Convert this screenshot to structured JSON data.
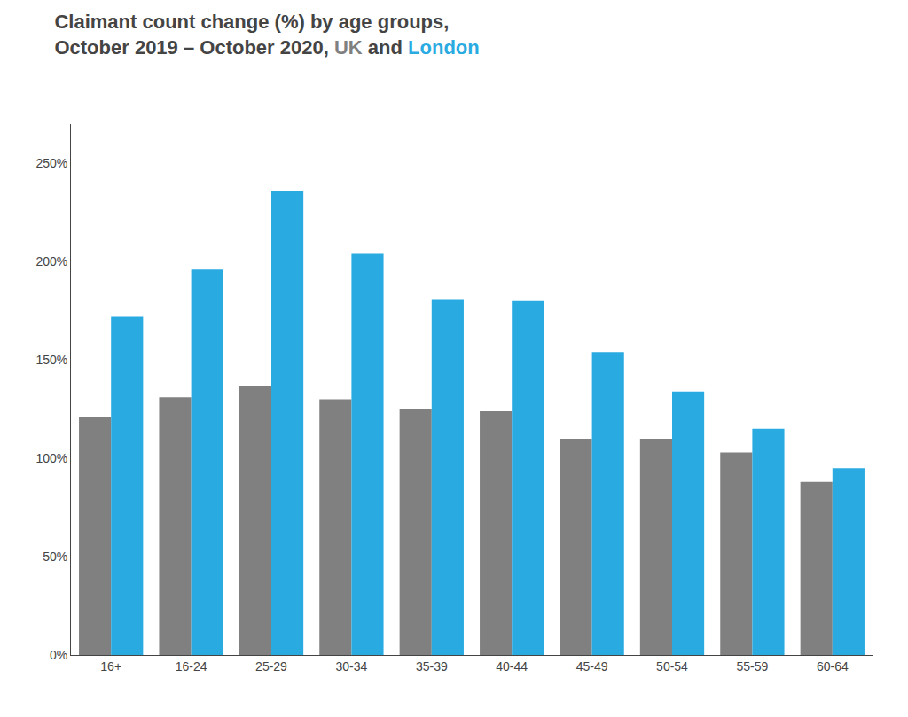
{
  "chart_data": {
    "type": "bar",
    "title": "Claimant count change (%) by age groups,",
    "subtitle": "October 2019 – October 2020, UK and London",
    "categories": [
      "16+",
      "16-24",
      "25-29",
      "30-34",
      "35-39",
      "40-44",
      "45-49",
      "50-54",
      "55-59",
      "60-64"
    ],
    "series": [
      {
        "name": "UK",
        "color": "#808080",
        "values": [
          121,
          131,
          137,
          130,
          125,
          124,
          110,
          110,
          103,
          88
        ]
      },
      {
        "name": "London",
        "color": "#29ABE2",
        "values": [
          172,
          196,
          236,
          204,
          181,
          180,
          154,
          134,
          115,
          95
        ]
      }
    ],
    "ylim": [
      0,
      270
    ],
    "yticks": [
      {
        "value": 0,
        "label": "0%"
      },
      {
        "value": 50,
        "label": "50%"
      },
      {
        "value": 100,
        "label": "100%"
      },
      {
        "value": 150,
        "label": "150%"
      },
      {
        "value": 200,
        "label": "200%"
      },
      {
        "value": 250,
        "label": "250%"
      }
    ],
    "grid": false
  }
}
